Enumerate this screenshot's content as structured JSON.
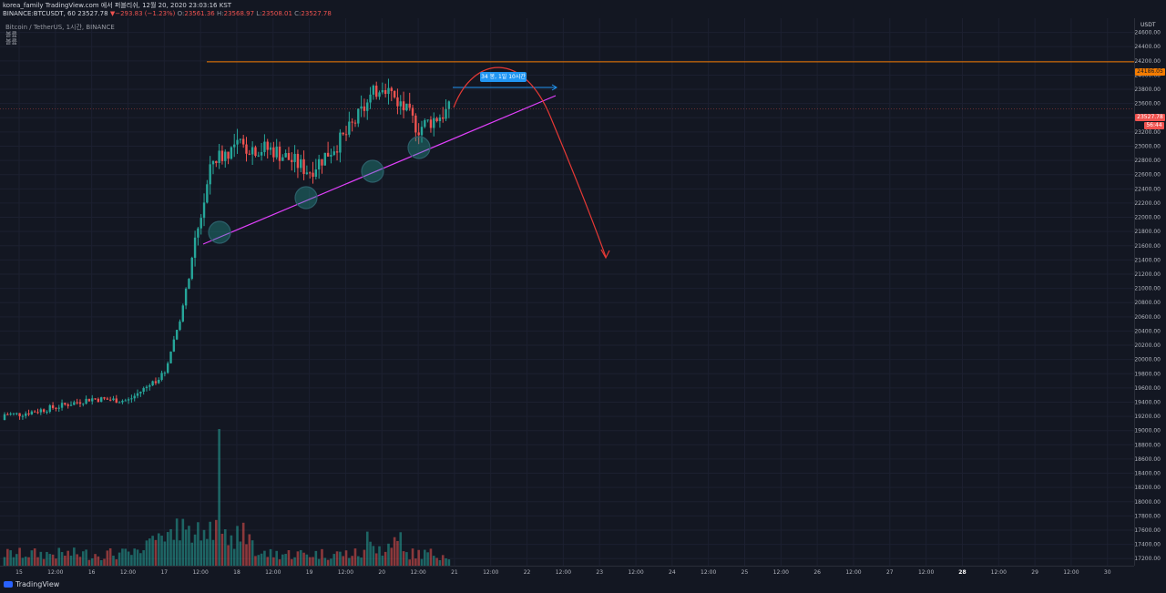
{
  "header": {
    "publish_line": "korea_family TradingView.com 에서 퍼블리쉬, 12월 20, 2020 23:03:16 KST",
    "symbol": "BINANCE:BTCUSDT, 60",
    "last": "23527.78",
    "change": "−293.83 (−1.23%)",
    "o_label": "O:",
    "o": "23561.36",
    "h_label": "H:",
    "h": "23568.97",
    "l_label": "L:",
    "l": "23508.01",
    "c_label": "C:",
    "c": "23527.78"
  },
  "legend": {
    "title": "Bitcoin / TetherUS, 1시간, BINANCE",
    "lines": [
      "볼륨",
      "볼륨"
    ]
  },
  "axis": {
    "currency": "USDT"
  },
  "price_tags": {
    "resistance": "24186.05",
    "last": "23527.78",
    "countdown": "56:44"
  },
  "measure_label": "34 봉, 1일 10시간",
  "footer": {
    "brand": "TradingView"
  },
  "colors": {
    "background": "#131722",
    "up": "#26a69a",
    "down": "#ef5350",
    "resistance": "#f57c00",
    "trendline": "#e040fb",
    "arrow": "#e53935",
    "measure": "#2196f3"
  },
  "chart_data": {
    "type": "candlestick",
    "symbol": "BTCUSDT",
    "interval": "1h",
    "ylim": [
      17100,
      24800
    ],
    "y_ticks": [
      17200,
      17400,
      17600,
      17800,
      18000,
      18200,
      18400,
      18600,
      18800,
      19000,
      19200,
      19400,
      19600,
      19800,
      20000,
      20200,
      20400,
      20600,
      20800,
      21000,
      21200,
      21400,
      21600,
      21800,
      22000,
      22200,
      22400,
      22600,
      22800,
      23000,
      23200,
      23400,
      23600,
      23800,
      24000,
      24200,
      24400,
      24600
    ],
    "x_ticks": [
      "15",
      "12:00",
      "16",
      "12:00",
      "17",
      "12:00",
      "18",
      "12:00",
      "19",
      "12:00",
      "20",
      "12:00",
      "21",
      "12:00",
      "22",
      "12:00",
      "23",
      "12:00",
      "24",
      "12:00",
      "25",
      "12:00",
      "26",
      "12:00",
      "27",
      "12:00",
      "28",
      "12:00",
      "29",
      "12:00",
      "30"
    ],
    "x_ticks_bold": [
      "28"
    ],
    "points": [
      {
        "t": "15 00:00",
        "y": 19230
      },
      {
        "t": "15 12:00",
        "y": 19330
      },
      {
        "t": "16 00:00",
        "y": 19450
      },
      {
        "t": "16 12:00",
        "y": 19420
      },
      {
        "t": "17 00:00",
        "y": 19800
      },
      {
        "t": "17 06:00",
        "y": 20700
      },
      {
        "t": "17 12:00",
        "y": 22000
      },
      {
        "t": "17 16:00",
        "y": 22800
      },
      {
        "t": "18 00:00",
        "y": 23000
      },
      {
        "t": "18 12:00",
        "y": 22950
      },
      {
        "t": "19 00:00",
        "y": 22650
      },
      {
        "t": "19 12:00",
        "y": 23150
      },
      {
        "t": "20 00:00",
        "y": 23900
      },
      {
        "t": "20 06:00",
        "y": 23600
      },
      {
        "t": "20 12:00",
        "y": 23250
      },
      {
        "t": "20 23:00",
        "y": 23527.78
      }
    ],
    "high": 24186.05,
    "resistance_level": 24186.05,
    "last_price": 23527.78,
    "volume": "shown as bars below price",
    "annotations": {
      "trendline": "ascending support",
      "touches": 4,
      "projection": "arc down",
      "measure_text": "34 봉, 1일 10시간"
    }
  }
}
